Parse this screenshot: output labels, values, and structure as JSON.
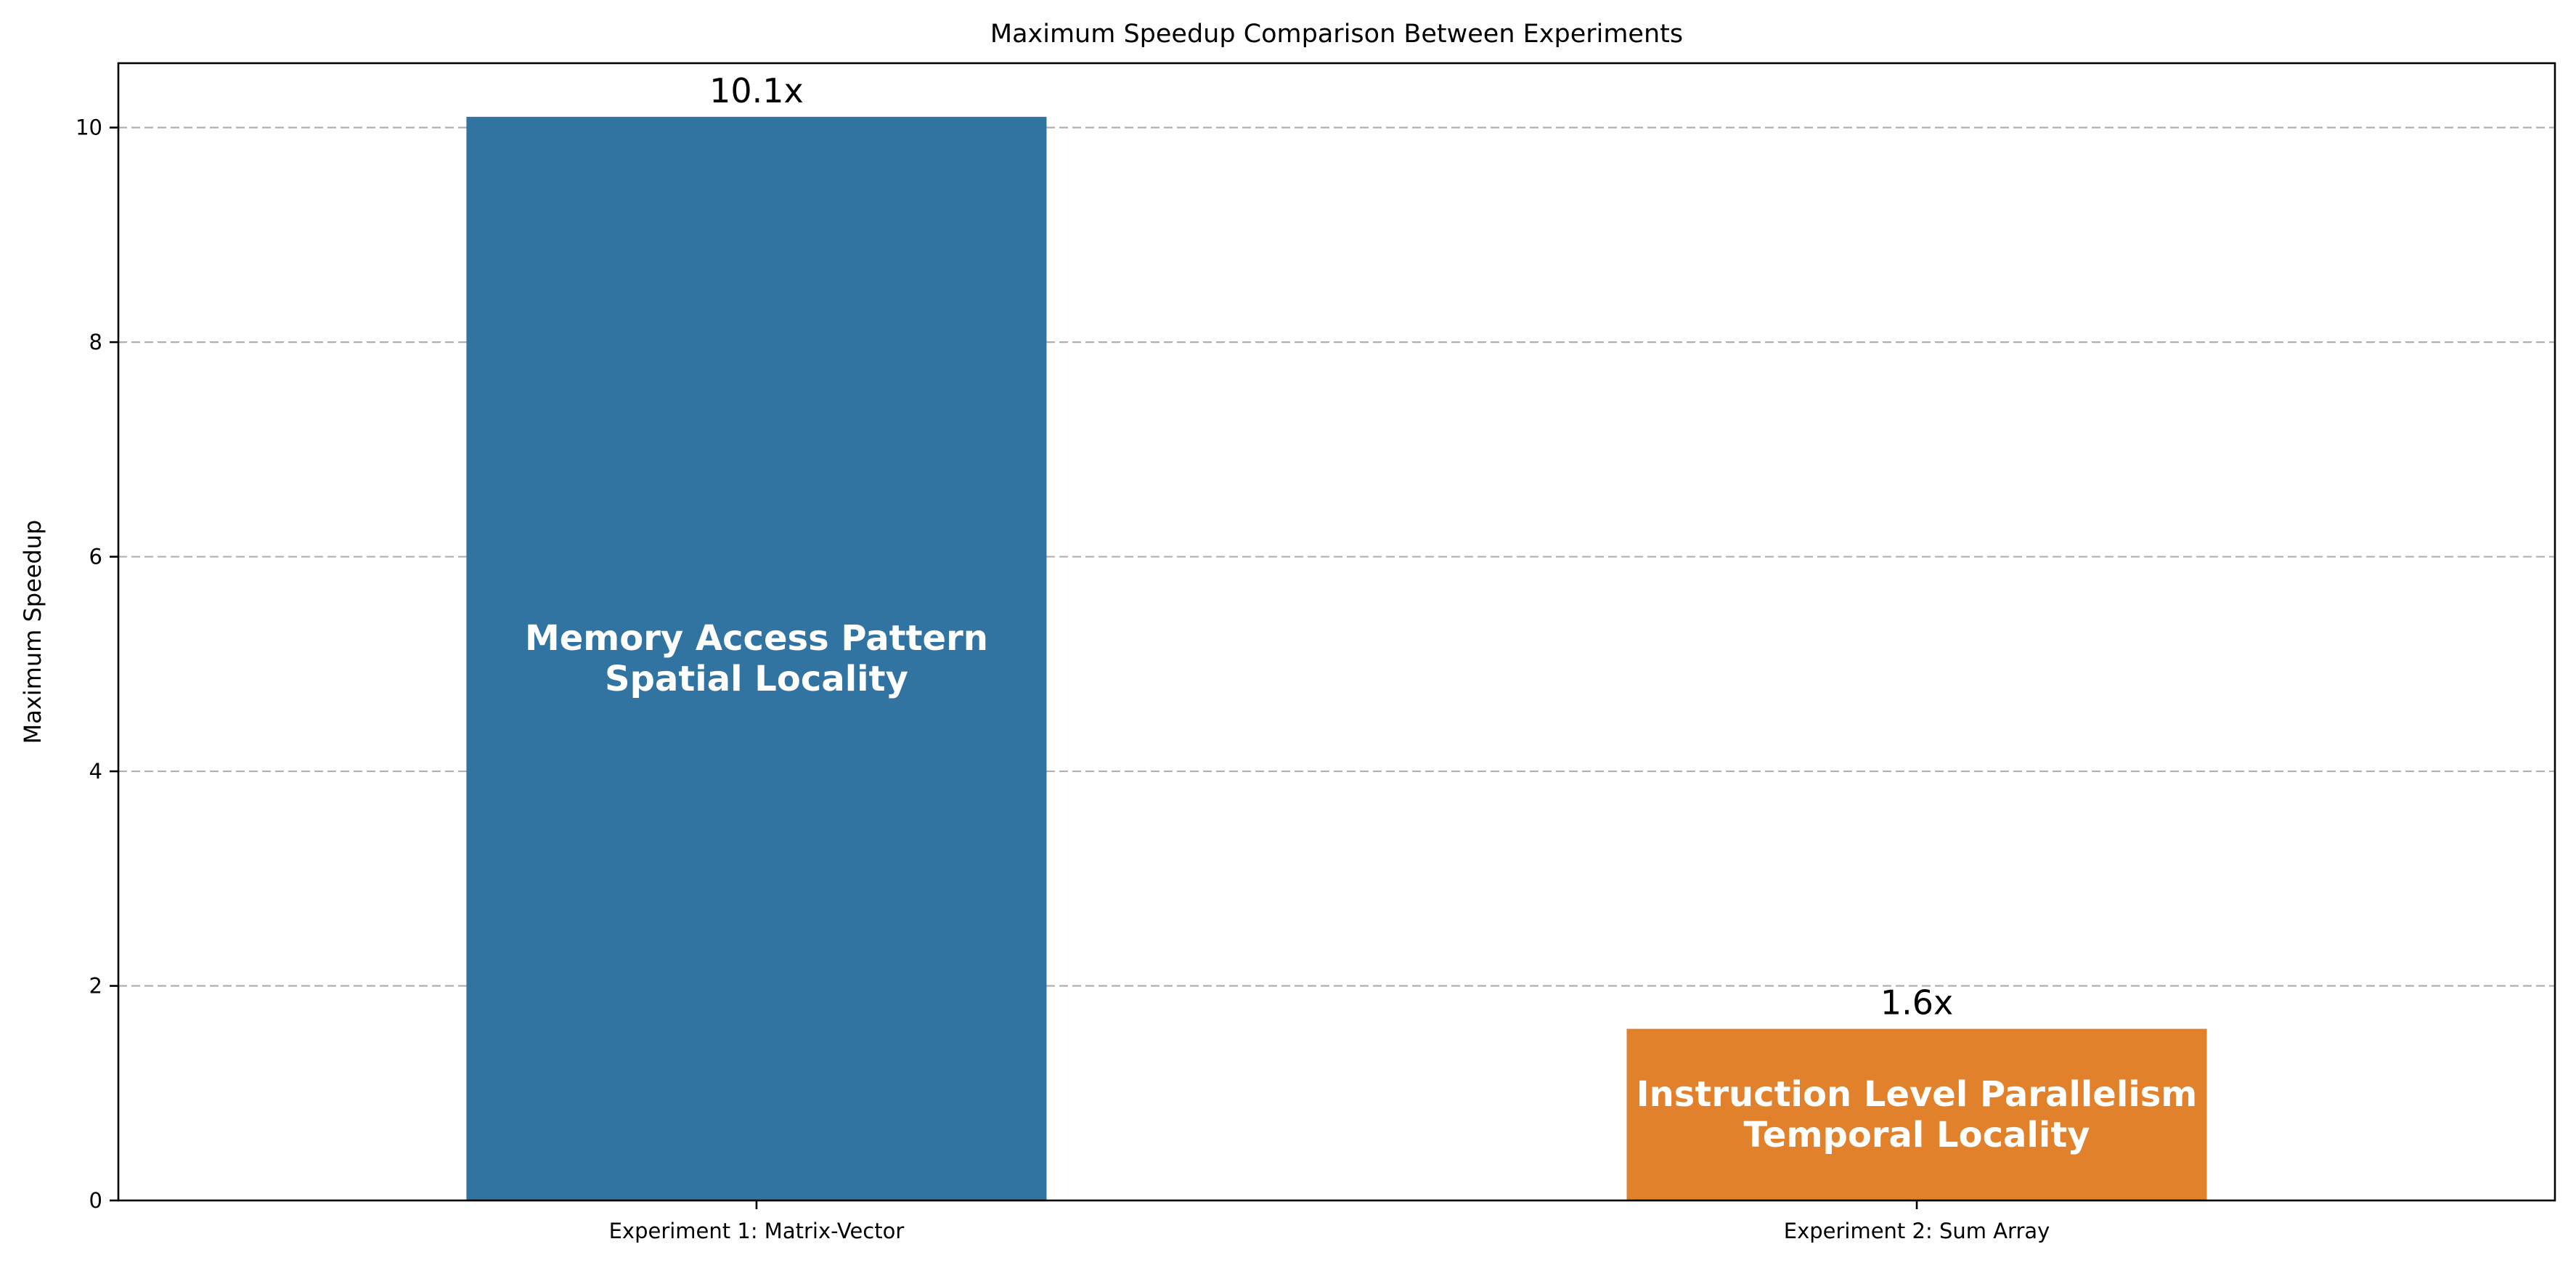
{
  "chart_data": {
    "type": "bar",
    "title": "Maximum Speedup Comparison Between Experiments",
    "xlabel": "",
    "ylabel": "Maximum Speedup",
    "ylim": [
      0,
      10.6
    ],
    "yticks": [
      0,
      2,
      4,
      6,
      8,
      10
    ],
    "grid": "y-dashed",
    "categories": [
      "Experiment 1: Matrix-Vector",
      "Experiment 2: Sum Array"
    ],
    "values": [
      10.1,
      1.6
    ],
    "value_labels": [
      "10.1x",
      "1.6x"
    ],
    "bar_colors": [
      "#3274a1",
      "#e1812c"
    ],
    "bar_annotations": [
      [
        "Memory Access Pattern",
        "Spatial Locality"
      ],
      [
        "Instruction Level Parallelism",
        "Temporal Locality"
      ]
    ]
  }
}
